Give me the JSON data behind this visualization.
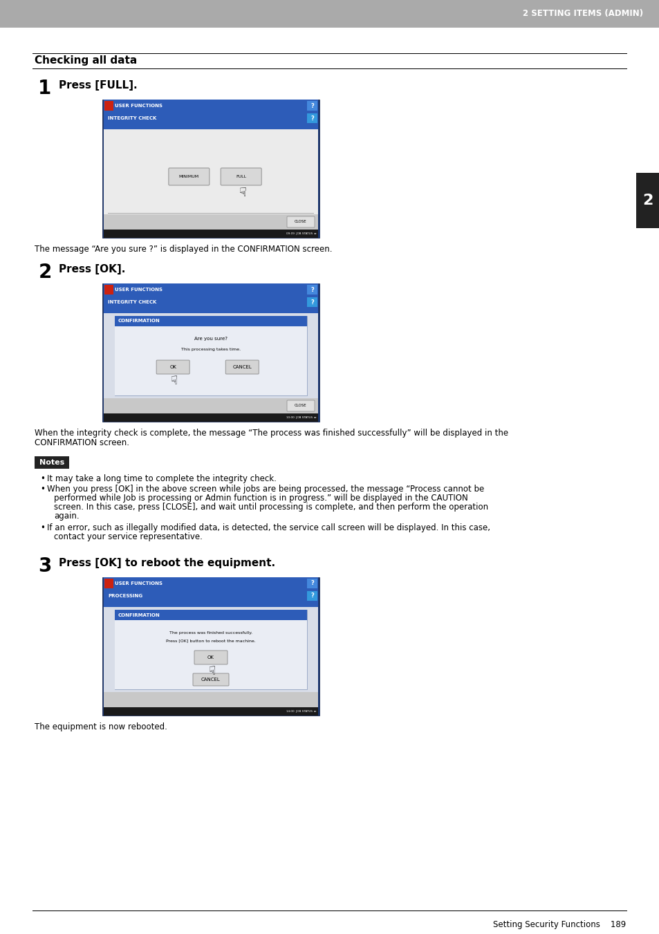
{
  "page_bg": "#ffffff",
  "header_bg": "#aaaaaa",
  "header_text": "2 SETTING ITEMS (ADMIN)",
  "header_text_color": "#ffffff",
  "section_title": "Checking all data",
  "sidebar_color": "#222222",
  "sidebar_text": "2",
  "step1_label": "1",
  "step1_title": "Press [FULL].",
  "step1_caption": "The message “Are you sure ?” is displayed in the CONFIRMATION screen.",
  "step2_label": "2",
  "step2_title": "Press [OK].",
  "step2_caption1": "When the integrity check is complete, the message “The process was finished successfully” will be displayed in the",
  "step2_caption2": "CONFIRMATION screen.",
  "notes_label": "Notes",
  "notes_bg": "#222222",
  "notes_text_color": "#ffffff",
  "note1": "It may take a long time to complete the integrity check.",
  "note2a": "When you press [OK] in the above screen while jobs are being processed, the message “Process cannot be",
  "note2b": "performed while Job is processing or Admin function is in progress.” will be displayed in the CAUTION",
  "note2c": "screen. In this case, press [CLOSE], and wait until processing is complete, and then perform the operation",
  "note2d": "again.",
  "note3a": "If an error, such as illegally modified data, is detected, the service call screen will be displayed. In this case,",
  "note3b": "contact your service representative.",
  "step3_label": "3",
  "step3_title": "Press [OK] to reboot the equipment.",
  "step3_caption": "The equipment is now rebooted.",
  "footer_text": "Setting Security Functions    189",
  "screen_blue_dark": "#1f3d7a",
  "screen_blue_mid": "#2d5fbe",
  "screen_blue_light": "#4a7fd4",
  "screen_gray_light": "#e8e8e8",
  "screen_gray_mid": "#d0d0d0",
  "screen_gray_dark": "#b8b8b8",
  "screen_content_bg": "#dde3ee",
  "screen_dialog_content": "#eaeef4",
  "btn_color": "#d4d4d4",
  "btn_edge": "#888888"
}
